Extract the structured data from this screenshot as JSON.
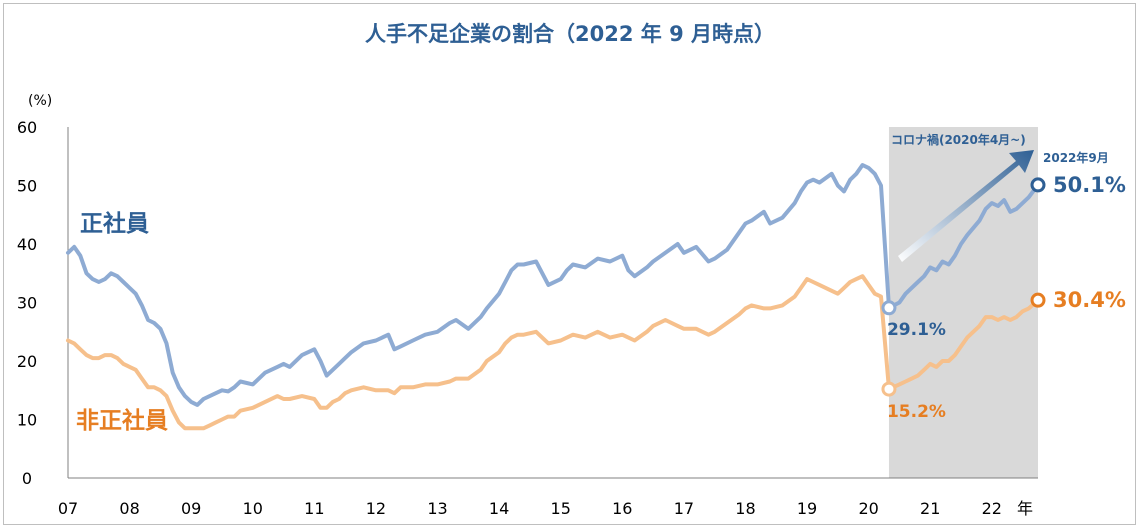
{
  "chart_data": {
    "type": "line",
    "title": "人手不足企業の割合（2022 年 9 月時点）",
    "ylabel": "(%)",
    "xlabel": "年",
    "ylim": [
      0,
      60
    ],
    "yticks": [
      "0",
      "10",
      "20",
      "30",
      "40",
      "50",
      "60"
    ],
    "x_range": [
      2007.0,
      2022.75
    ],
    "xticks": [
      "07",
      "08",
      "09",
      "10",
      "11",
      "12",
      "13",
      "14",
      "15",
      "16",
      "17",
      "18",
      "19",
      "20",
      "21",
      "22"
    ],
    "grid": false,
    "legend": "inline labels",
    "shaded_region": {
      "from": 2020.33,
      "to": 2022.75,
      "label": "コロナ禍(2020年4月~)",
      "color": "#d9d9d9"
    },
    "arrow_label": "2022年9月",
    "series": [
      {
        "name": "正社員",
        "color": "#8eabd3",
        "label_color": "#2e5f94",
        "x": [
          2007.0,
          2007.1,
          2007.2,
          2007.3,
          2007.4,
          2007.5,
          2007.6,
          2007.7,
          2007.8,
          2007.9,
          2008.0,
          2008.1,
          2008.2,
          2008.3,
          2008.4,
          2008.5,
          2008.6,
          2008.7,
          2008.8,
          2008.9,
          2009.0,
          2009.1,
          2009.2,
          2009.3,
          2009.4,
          2009.5,
          2009.6,
          2009.7,
          2009.8,
          2010.0,
          2010.2,
          2010.4,
          2010.5,
          2010.6,
          2010.8,
          2011.0,
          2011.1,
          2011.2,
          2011.3,
          2011.4,
          2011.5,
          2011.6,
          2011.8,
          2012.0,
          2012.2,
          2012.3,
          2012.4,
          2012.6,
          2012.8,
          2013.0,
          2013.2,
          2013.3,
          2013.5,
          2013.7,
          2013.8,
          2014.0,
          2014.1,
          2014.2,
          2014.3,
          2014.4,
          2014.6,
          2014.8,
          2015.0,
          2015.1,
          2015.2,
          2015.4,
          2015.6,
          2015.8,
          2016.0,
          2016.1,
          2016.2,
          2016.4,
          2016.5,
          2016.7,
          2016.9,
          2017.0,
          2017.2,
          2017.4,
          2017.5,
          2017.7,
          2017.9,
          2018.0,
          2018.1,
          2018.3,
          2018.4,
          2018.6,
          2018.8,
          2018.9,
          2019.0,
          2019.1,
          2019.2,
          2019.4,
          2019.5,
          2019.6,
          2019.7,
          2019.8,
          2019.9,
          2020.0,
          2020.1,
          2020.2,
          2020.33,
          2020.5,
          2020.6,
          2020.8,
          2020.9,
          2021.0,
          2021.1,
          2021.2,
          2021.3,
          2021.4,
          2021.5,
          2021.6,
          2021.8,
          2021.9,
          2022.0,
          2022.1,
          2022.2,
          2022.3,
          2022.4,
          2022.5,
          2022.6,
          2022.75
        ],
        "values": [
          38.5,
          39.5,
          38.0,
          35.0,
          34.0,
          33.5,
          34.0,
          35.0,
          34.5,
          33.5,
          32.5,
          31.5,
          29.5,
          27.0,
          26.5,
          25.5,
          23.0,
          18.0,
          15.5,
          14.0,
          13.0,
          12.5,
          13.5,
          14.0,
          14.5,
          15.0,
          14.8,
          15.5,
          16.5,
          16.0,
          18.0,
          19.0,
          19.5,
          19.0,
          21.0,
          22.0,
          20.0,
          17.5,
          18.5,
          19.5,
          20.5,
          21.5,
          23.0,
          23.5,
          24.5,
          22.0,
          22.5,
          23.5,
          24.5,
          25.0,
          26.5,
          27.0,
          25.5,
          27.5,
          29.0,
          31.5,
          33.5,
          35.5,
          36.5,
          36.5,
          37.0,
          33.0,
          34.0,
          35.5,
          36.5,
          36.0,
          37.5,
          37.0,
          38.0,
          35.5,
          34.5,
          36.0,
          37.0,
          38.5,
          40.0,
          38.5,
          39.5,
          37.0,
          37.5,
          39.0,
          42.0,
          43.5,
          44.0,
          45.5,
          43.5,
          44.5,
          47.0,
          49.0,
          50.5,
          51.0,
          50.5,
          52.0,
          50.0,
          49.0,
          51.0,
          52.0,
          53.5,
          53.0,
          52.0,
          50.0,
          29.1,
          30.0,
          31.5,
          33.5,
          34.5,
          36.0,
          35.5,
          37.0,
          36.5,
          38.0,
          40.0,
          41.5,
          44.0,
          46.0,
          47.0,
          46.5,
          47.5,
          45.5,
          46.0,
          47.0,
          48.0,
          50.1
        ]
      },
      {
        "name": "非正社員",
        "color": "#f6c08c",
        "label_color": "#e67e22",
        "x": [
          2007.0,
          2007.1,
          2007.2,
          2007.3,
          2007.4,
          2007.5,
          2007.6,
          2007.7,
          2007.8,
          2007.9,
          2008.0,
          2008.1,
          2008.2,
          2008.3,
          2008.4,
          2008.5,
          2008.6,
          2008.7,
          2008.8,
          2008.9,
          2009.0,
          2009.1,
          2009.2,
          2009.3,
          2009.4,
          2009.5,
          2009.6,
          2009.7,
          2009.8,
          2010.0,
          2010.2,
          2010.4,
          2010.5,
          2010.6,
          2010.8,
          2011.0,
          2011.1,
          2011.2,
          2011.3,
          2011.4,
          2011.5,
          2011.6,
          2011.8,
          2012.0,
          2012.2,
          2012.3,
          2012.4,
          2012.6,
          2012.8,
          2013.0,
          2013.2,
          2013.3,
          2013.5,
          2013.7,
          2013.8,
          2014.0,
          2014.1,
          2014.2,
          2014.3,
          2014.4,
          2014.6,
          2014.8,
          2015.0,
          2015.1,
          2015.2,
          2015.4,
          2015.6,
          2015.8,
          2016.0,
          2016.1,
          2016.2,
          2016.4,
          2016.5,
          2016.7,
          2016.9,
          2017.0,
          2017.2,
          2017.4,
          2017.5,
          2017.7,
          2017.9,
          2018.0,
          2018.1,
          2018.3,
          2018.4,
          2018.6,
          2018.8,
          2018.9,
          2019.0,
          2019.1,
          2019.2,
          2019.4,
          2019.5,
          2019.6,
          2019.7,
          2019.8,
          2019.9,
          2020.0,
          2020.1,
          2020.2,
          2020.33,
          2020.5,
          2020.6,
          2020.8,
          2020.9,
          2021.0,
          2021.1,
          2021.2,
          2021.3,
          2021.4,
          2021.5,
          2021.6,
          2021.8,
          2021.9,
          2022.0,
          2022.1,
          2022.2,
          2022.3,
          2022.4,
          2022.5,
          2022.6,
          2022.75
        ],
        "values": [
          23.5,
          23.0,
          22.0,
          21.0,
          20.5,
          20.5,
          21.0,
          21.0,
          20.5,
          19.5,
          19.0,
          18.5,
          17.0,
          15.5,
          15.5,
          15.0,
          14.0,
          11.5,
          9.5,
          8.5,
          8.5,
          8.5,
          8.5,
          9.0,
          9.5,
          10.0,
          10.5,
          10.5,
          11.5,
          12.0,
          13.0,
          14.0,
          13.5,
          13.5,
          14.0,
          13.5,
          12.0,
          12.0,
          13.0,
          13.5,
          14.5,
          15.0,
          15.5,
          15.0,
          15.0,
          14.5,
          15.5,
          15.5,
          16.0,
          16.0,
          16.5,
          17.0,
          17.0,
          18.5,
          20.0,
          21.5,
          23.0,
          24.0,
          24.5,
          24.5,
          25.0,
          23.0,
          23.5,
          24.0,
          24.5,
          24.0,
          25.0,
          24.0,
          24.5,
          24.0,
          23.5,
          25.0,
          26.0,
          27.0,
          26.0,
          25.5,
          25.5,
          24.5,
          25.0,
          26.5,
          28.0,
          29.0,
          29.5,
          29.0,
          29.0,
          29.5,
          31.0,
          32.5,
          34.0,
          33.5,
          33.0,
          32.0,
          31.5,
          32.5,
          33.5,
          34.0,
          34.5,
          33.0,
          31.5,
          31.0,
          15.2,
          16.0,
          16.5,
          17.5,
          18.5,
          19.5,
          19.0,
          20.0,
          20.0,
          21.0,
          22.5,
          24.0,
          26.0,
          27.5,
          27.5,
          27.0,
          27.5,
          27.0,
          27.5,
          28.5,
          29.0,
          30.4
        ]
      }
    ],
    "annotations": [
      {
        "series": 0,
        "x": 2020.33,
        "text": "29.1%"
      },
      {
        "series": 1,
        "x": 2020.33,
        "text": "15.2%"
      },
      {
        "series": 0,
        "x": 2022.75,
        "text": "50.1%"
      },
      {
        "series": 1,
        "x": 2022.75,
        "text": "30.4%"
      }
    ]
  }
}
